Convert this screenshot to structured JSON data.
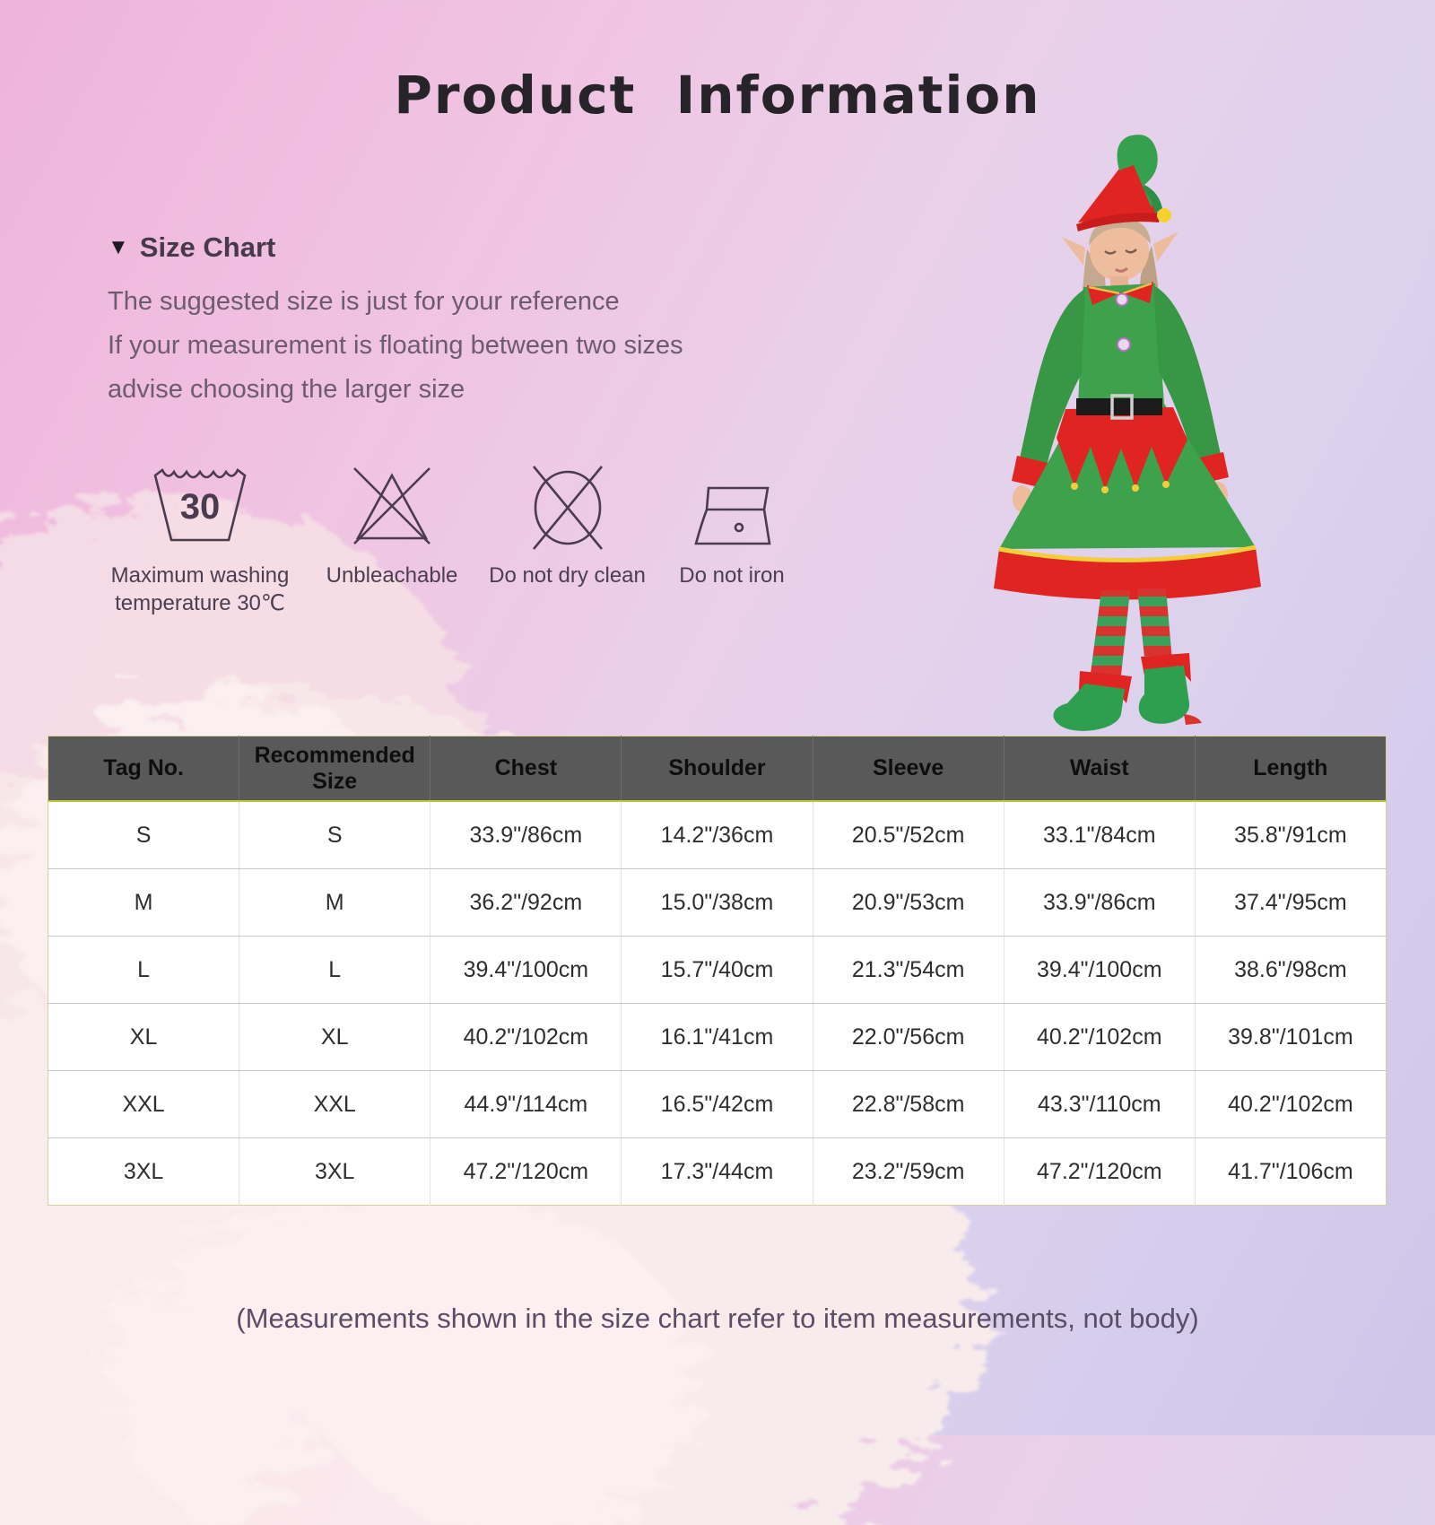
{
  "title": "Product  Information",
  "size_chart": {
    "marker": "▼",
    "heading": "Size Chart",
    "line1": "The suggested size is just for your reference",
    "line2": "If your measurement is floating between two sizes",
    "line3": "advise choosing the larger size"
  },
  "care": {
    "items": [
      {
        "icon": "wash-30-icon",
        "value": "30",
        "label": "Maximum washing temperature 30℃"
      },
      {
        "icon": "no-bleach-icon",
        "label": "Unbleachable"
      },
      {
        "icon": "no-dry-clean-icon",
        "label": "Do not dry clean"
      },
      {
        "icon": "no-iron-icon",
        "label": "Do not iron"
      }
    ]
  },
  "product_image": {
    "name": "elf-costume-model"
  },
  "table": {
    "headers": [
      "Tag No.",
      "Recommended Size",
      "Chest",
      "Shoulder",
      "Sleeve",
      "Waist",
      "Length"
    ],
    "rows": [
      [
        "S",
        "S",
        "33.9\"/86cm",
        "14.2\"/36cm",
        "20.5\"/52cm",
        "33.1\"/84cm",
        "35.8\"/91cm"
      ],
      [
        "M",
        "M",
        "36.2\"/92cm",
        "15.0\"/38cm",
        "20.9\"/53cm",
        "33.9\"/86cm",
        "37.4\"/95cm"
      ],
      [
        "L",
        "L",
        "39.4\"/100cm",
        "15.7\"/40cm",
        "21.3\"/54cm",
        "39.4\"/100cm",
        "38.6\"/98cm"
      ],
      [
        "XL",
        "XL",
        "40.2\"/102cm",
        "16.1\"/41cm",
        "22.0\"/56cm",
        "40.2\"/102cm",
        "39.8\"/101cm"
      ],
      [
        "XXL",
        "XXL",
        "44.9\"/114cm",
        "16.5\"/42cm",
        "22.8\"/58cm",
        "43.3\"/110cm",
        "40.2\"/102cm"
      ],
      [
        "3XL",
        "3XL",
        "47.2\"/120cm",
        "17.3\"/44cm",
        "23.2\"/59cm",
        "47.2\"/120cm",
        "41.7\"/106cm"
      ]
    ]
  },
  "footer_note": "(Measurements shown in the size chart refer to item measurements, not body)",
  "colors": {
    "header_bg": "#595959",
    "accent_line": "#b9c937",
    "costume_green": "#3da24b",
    "costume_red": "#df2422",
    "trim_yellow": "#f2cf3a",
    "bg_pink": "#efb3db",
    "bg_lavender": "#cfc5e9"
  }
}
